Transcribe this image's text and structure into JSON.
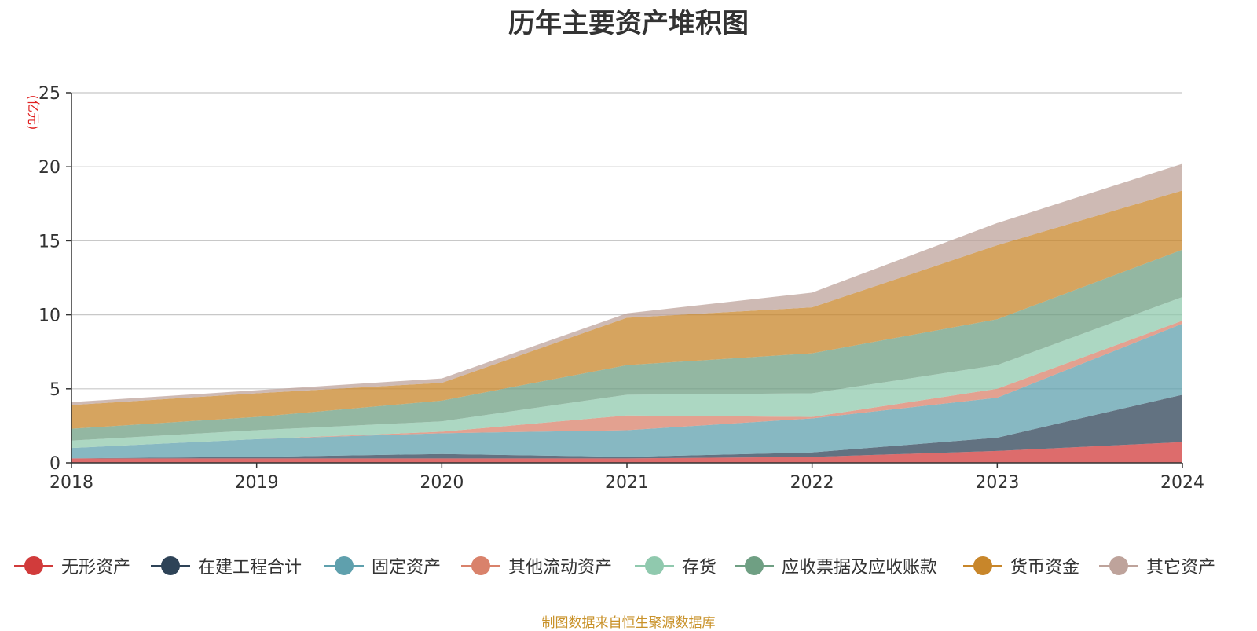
{
  "chart_data": {
    "type": "area",
    "stacked": true,
    "title": "历年主要资产堆积图",
    "ylabel": "(亿元)",
    "ylim": [
      0,
      25
    ],
    "yticks": [
      0,
      5,
      10,
      15,
      20,
      25
    ],
    "categories": [
      "2018",
      "2019",
      "2020",
      "2021",
      "2022",
      "2023",
      "2024"
    ],
    "grid": true,
    "legend_position": "bottom",
    "series": [
      {
        "name": "无形资产",
        "color": "#d13b3b",
        "values": [
          0.3,
          0.3,
          0.3,
          0.3,
          0.4,
          0.8,
          1.4
        ]
      },
      {
        "name": "在建工程合计",
        "color": "#2e4357",
        "values": [
          0.0,
          0.1,
          0.3,
          0.1,
          0.3,
          0.9,
          3.2
        ]
      },
      {
        "name": "固定资产",
        "color": "#5fa0ad",
        "values": [
          0.7,
          1.2,
          1.4,
          1.8,
          2.3,
          2.7,
          4.8
        ]
      },
      {
        "name": "其他流动资产",
        "color": "#d9826b",
        "values": [
          0.0,
          0.0,
          0.1,
          1.0,
          0.1,
          0.6,
          0.2
        ]
      },
      {
        "name": "存货",
        "color": "#90c9ae",
        "values": [
          0.5,
          0.6,
          0.7,
          1.4,
          1.6,
          1.6,
          1.6
        ]
      },
      {
        "name": "应收票据及应收账款",
        "color": "#6f9f83",
        "values": [
          0.8,
          0.9,
          1.4,
          2.0,
          2.7,
          3.1,
          3.2
        ]
      },
      {
        "name": "货币资金",
        "color": "#c8862a",
        "values": [
          1.6,
          1.6,
          1.2,
          3.2,
          3.1,
          5.0,
          4.0
        ]
      },
      {
        "name": "其它资产",
        "color": "#bea39b",
        "values": [
          0.2,
          0.2,
          0.3,
          0.3,
          1.0,
          1.5,
          1.8
        ]
      }
    ],
    "source": "制图数据来自恒生聚源数据库"
  }
}
